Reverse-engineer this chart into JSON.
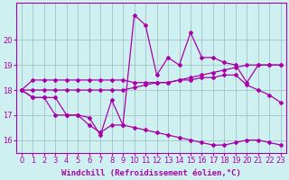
{
  "title": "",
  "xlabel": "Windchill (Refroidissement éolien,°C)",
  "bg_color": "#cff0f0",
  "line_color": "#aa00aa",
  "grid_color": "#99bbbb",
  "x": [
    0,
    1,
    2,
    3,
    4,
    5,
    6,
    7,
    8,
    9,
    10,
    11,
    12,
    13,
    14,
    15,
    16,
    17,
    18,
    19,
    20,
    21,
    22,
    23
  ],
  "line1": [
    18.0,
    18.4,
    18.4,
    18.4,
    18.4,
    18.4,
    18.4,
    18.4,
    18.4,
    18.4,
    18.3,
    18.3,
    18.3,
    18.3,
    18.4,
    18.5,
    18.6,
    18.7,
    18.8,
    18.9,
    19.0,
    19.0,
    19.0,
    19.0
  ],
  "line2": [
    18.0,
    17.7,
    17.7,
    17.7,
    17.0,
    17.0,
    16.9,
    16.2,
    17.6,
    16.6,
    21.0,
    20.6,
    18.6,
    19.3,
    19.0,
    20.3,
    19.3,
    19.3,
    19.1,
    19.0,
    18.3,
    19.0,
    19.0,
    19.0
  ],
  "line3": [
    18.0,
    18.0,
    18.0,
    18.0,
    18.0,
    18.0,
    18.0,
    18.0,
    18.0,
    18.0,
    18.1,
    18.2,
    18.3,
    18.3,
    18.4,
    18.4,
    18.5,
    18.5,
    18.6,
    18.6,
    18.2,
    18.0,
    17.8,
    17.5
  ],
  "line4": [
    18.0,
    17.7,
    17.7,
    17.0,
    17.0,
    17.0,
    16.6,
    16.3,
    16.6,
    16.6,
    16.5,
    16.4,
    16.3,
    16.2,
    16.1,
    16.0,
    15.9,
    15.8,
    15.8,
    15.9,
    16.0,
    16.0,
    15.9,
    15.8
  ],
  "ylim": [
    15.5,
    21.5
  ],
  "yticks": [
    16,
    17,
    18,
    19,
    20
  ],
  "xticks": [
    0,
    1,
    2,
    3,
    4,
    5,
    6,
    7,
    8,
    9,
    10,
    11,
    12,
    13,
    14,
    15,
    16,
    17,
    18,
    19,
    20,
    21,
    22,
    23
  ],
  "marker": "D",
  "markersize": 2,
  "linewidth": 0.9
}
